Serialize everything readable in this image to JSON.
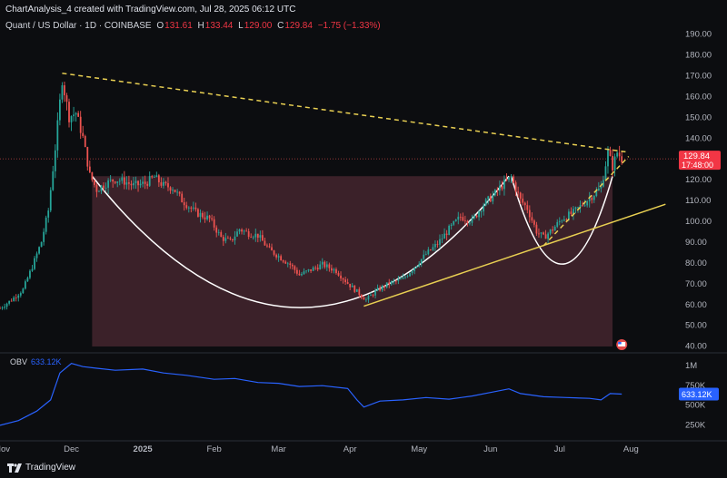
{
  "header": {
    "publisher": "ChartAnalysis_4 created with TradingView.com, Jul 28, 2025 06:12 UTC"
  },
  "legend": {
    "symbol": "Quant / US Dollar · 1D · COINBASE",
    "open_label": "O",
    "open": "131.61",
    "high_label": "H",
    "high": "133.44",
    "low_label": "L",
    "low": "129.00",
    "close_label": "C",
    "close": "129.84",
    "change": "−1.75 (−1.33%)"
  },
  "price_badge": {
    "price": "129.84",
    "countdown": "17:48:00",
    "color": "#f23645"
  },
  "obv": {
    "label": "OBV",
    "value": "633.12K",
    "color": "#2962ff"
  },
  "brand": {
    "name": "TradingView"
  },
  "colors": {
    "up": "#26a69a",
    "down": "#ef5350",
    "trendline_yellow": "#e8cf52",
    "pattern_fill": "#5c2f3a",
    "cup_outline": "#ffffff",
    "obv_line": "#2962ff"
  },
  "chart_data": [
    {
      "type": "candlestick",
      "title": "Quant / US Dollar · 1D · COINBASE",
      "y_axis_ticks": [
        "190.00",
        "180.00",
        "170.00",
        "160.00",
        "150.00",
        "140.00",
        "130.00",
        "120.00",
        "110.00",
        "100.00",
        "90.00",
        "80.00",
        "70.00",
        "60.00",
        "50.00",
        "40.00"
      ],
      "ylim": [
        37,
        194
      ],
      "x_axis_ticks": [
        "Nov",
        "Dec",
        "2025",
        "Feb",
        "Mar",
        "Apr",
        "May",
        "Jun",
        "Jul",
        "Aug"
      ],
      "xlim": [
        "2024-10-31",
        "2025-08-21"
      ],
      "close_series": [
        [
          "2024-10-31",
          58
        ],
        [
          "2024-11-05",
          62
        ],
        [
          "2024-11-10",
          67
        ],
        [
          "2024-11-14",
          78
        ],
        [
          "2024-11-18",
          90
        ],
        [
          "2024-11-21",
          105
        ],
        [
          "2024-11-24",
          135
        ],
        [
          "2024-11-27",
          168
        ],
        [
          "2024-11-30",
          150
        ],
        [
          "2024-12-03",
          152
        ],
        [
          "2024-12-06",
          140
        ],
        [
          "2024-12-09",
          122
        ],
        [
          "2024-12-12",
          115
        ],
        [
          "2024-12-16",
          118
        ],
        [
          "2024-12-20",
          120
        ],
        [
          "2024-12-24",
          119
        ],
        [
          "2024-12-28",
          117
        ],
        [
          "2025-01-02",
          118
        ],
        [
          "2025-01-06",
          121
        ],
        [
          "2025-01-10",
          117
        ],
        [
          "2025-01-14",
          116
        ],
        [
          "2025-01-18",
          110
        ],
        [
          "2025-01-24",
          104
        ],
        [
          "2025-01-30",
          101
        ],
        [
          "2025-02-04",
          92
        ],
        [
          "2025-02-08",
          90
        ],
        [
          "2025-02-12",
          96
        ],
        [
          "2025-02-16",
          94
        ],
        [
          "2025-02-20",
          93
        ],
        [
          "2025-02-25",
          86
        ],
        [
          "2025-03-01",
          83
        ],
        [
          "2025-03-06",
          79
        ],
        [
          "2025-03-10",
          74
        ],
        [
          "2025-03-14",
          76
        ],
        [
          "2025-03-20",
          79
        ],
        [
          "2025-03-26",
          76
        ],
        [
          "2025-03-31",
          70
        ],
        [
          "2025-04-04",
          66
        ],
        [
          "2025-04-08",
          62
        ],
        [
          "2025-04-12",
          66
        ],
        [
          "2025-04-18",
          70
        ],
        [
          "2025-04-24",
          72
        ],
        [
          "2025-04-29",
          78
        ],
        [
          "2025-05-04",
          84
        ],
        [
          "2025-05-09",
          89
        ],
        [
          "2025-05-14",
          96
        ],
        [
          "2025-05-19",
          102
        ],
        [
          "2025-05-24",
          100
        ],
        [
          "2025-05-29",
          108
        ],
        [
          "2025-06-02",
          112
        ],
        [
          "2025-06-06",
          117
        ],
        [
          "2025-06-10",
          121
        ],
        [
          "2025-06-14",
          110
        ],
        [
          "2025-06-17",
          106
        ],
        [
          "2025-06-21",
          95
        ],
        [
          "2025-06-24",
          92
        ],
        [
          "2025-06-28",
          96
        ],
        [
          "2025-07-02",
          101
        ],
        [
          "2025-07-07",
          104
        ],
        [
          "2025-07-11",
          108
        ],
        [
          "2025-07-15",
          112
        ],
        [
          "2025-07-19",
          116
        ],
        [
          "2025-07-22",
          133
        ],
        [
          "2025-07-24",
          126
        ],
        [
          "2025-07-26",
          133
        ],
        [
          "2025-07-28",
          129.84
        ]
      ],
      "last_price": 129.84,
      "cup_and_handle": {
        "rim_level": 121.5,
        "cup_start": "2024-12-10",
        "cup_end": "2025-06-09",
        "cup_bottom": 55,
        "handle_start": "2025-06-10",
        "handle_end": "2025-07-24",
        "handle_bottom": 77
      },
      "trendlines": [
        {
          "style": "dashed",
          "from": [
            "2024-11-27",
            171
          ],
          "to": [
            "2025-07-31",
            133
          ]
        },
        {
          "style": "solid",
          "from": [
            "2025-04-07",
            59
          ],
          "to": [
            "2025-08-16",
            108
          ]
        },
        {
          "style": "dashed",
          "from": [
            "2025-06-24",
            88
          ],
          "to": [
            "2025-07-31",
            131
          ]
        }
      ]
    },
    {
      "type": "line",
      "title": "OBV",
      "y_axis_ticks": [
        "1M",
        "750K",
        "500K",
        "250K"
      ],
      "ylim": [
        90000,
        1120000
      ],
      "series": [
        {
          "name": "OBV",
          "values": [
            [
              "2024-10-31",
              240000
            ],
            [
              "2024-11-08",
              300000
            ],
            [
              "2024-11-16",
              420000
            ],
            [
              "2024-11-22",
              560000
            ],
            [
              "2024-11-26",
              900000
            ],
            [
              "2024-12-01",
              1020000
            ],
            [
              "2024-12-06",
              980000
            ],
            [
              "2024-12-12",
              960000
            ],
            [
              "2024-12-20",
              935000
            ],
            [
              "2025-01-01",
              950000
            ],
            [
              "2025-01-10",
              900000
            ],
            [
              "2025-01-20",
              870000
            ],
            [
              "2025-02-01",
              820000
            ],
            [
              "2025-02-10",
              830000
            ],
            [
              "2025-02-20",
              780000
            ],
            [
              "2025-03-01",
              770000
            ],
            [
              "2025-03-10",
              730000
            ],
            [
              "2025-03-20",
              740000
            ],
            [
              "2025-03-31",
              705000
            ],
            [
              "2025-04-04",
              560000
            ],
            [
              "2025-04-07",
              470000
            ],
            [
              "2025-04-14",
              545000
            ],
            [
              "2025-04-24",
              560000
            ],
            [
              "2025-05-04",
              590000
            ],
            [
              "2025-05-14",
              570000
            ],
            [
              "2025-05-24",
              610000
            ],
            [
              "2025-06-02",
              660000
            ],
            [
              "2025-06-09",
              700000
            ],
            [
              "2025-06-14",
              640000
            ],
            [
              "2025-06-24",
              600000
            ],
            [
              "2025-07-04",
              590000
            ],
            [
              "2025-07-14",
              580000
            ],
            [
              "2025-07-19",
              560000
            ],
            [
              "2025-07-23",
              640000
            ],
            [
              "2025-07-28",
              633120
            ]
          ]
        }
      ]
    }
  ]
}
